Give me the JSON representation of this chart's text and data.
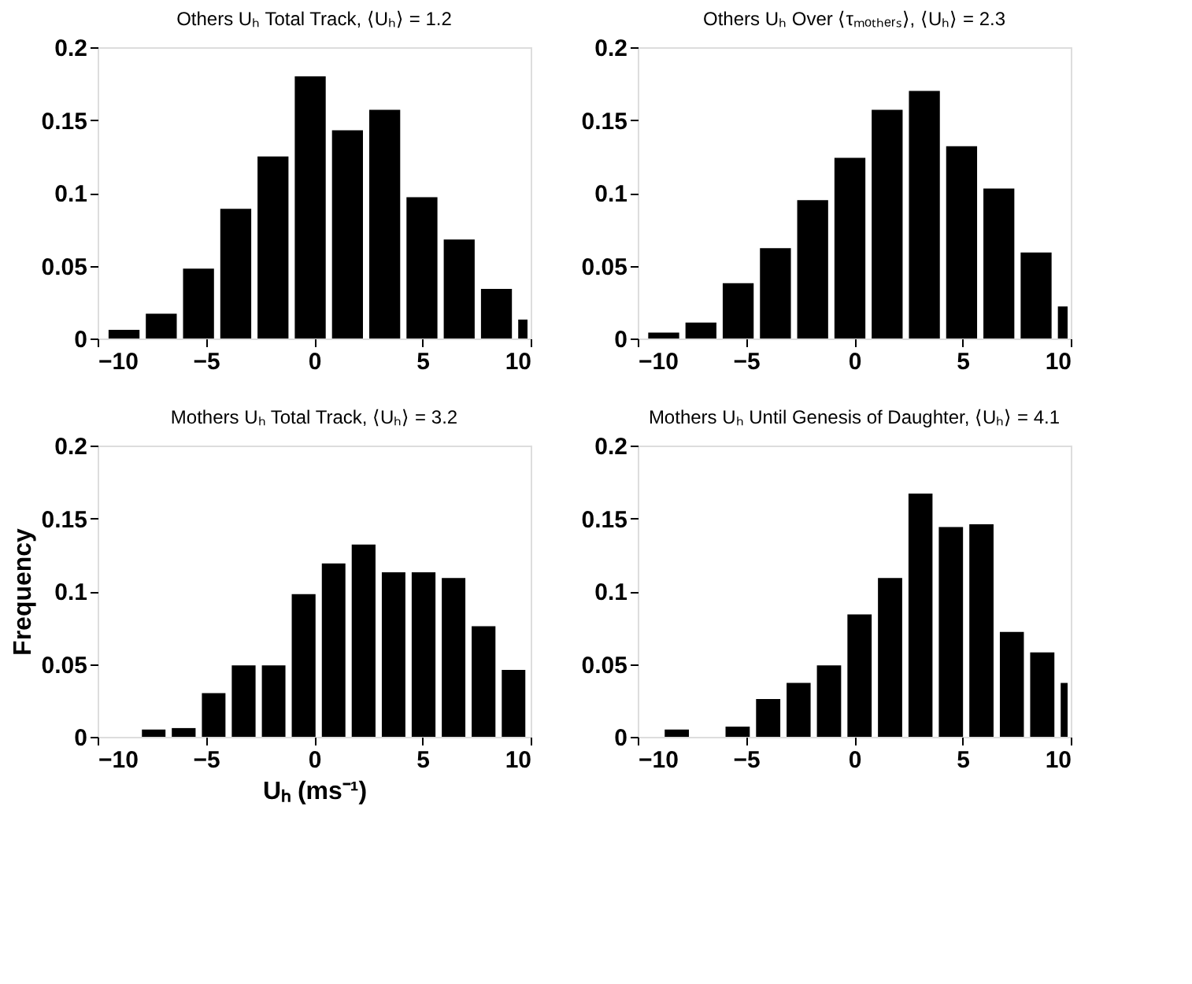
{
  "chart_data": [
    {
      "type": "histogram",
      "title": "Others Uₕ Total Track, ⟨Uₕ⟩ = 1.2",
      "color": "#000000",
      "bins": [
        -9.64,
        -7.92,
        -6.2,
        -4.48,
        -2.76,
        -1.04,
        0.68,
        2.4,
        4.12,
        5.84,
        7.56,
        9.28,
        10
      ],
      "values": [
        0.006,
        0.017,
        0.048,
        0.089,
        0.125,
        0.18,
        0.143,
        0.157,
        0.097,
        0.068,
        0.034,
        0.013
      ],
      "xlim": [
        -10,
        10
      ],
      "ylim": [
        0,
        0.2
      ],
      "xticks": [
        -10,
        -5,
        0,
        5,
        10
      ],
      "yticks": [
        0,
        0.05,
        0.1,
        0.15,
        0.2
      ],
      "grid": false
    },
    {
      "type": "histogram",
      "title": "Others Uₕ Over ⟨τₘₒₜₕₑᵣₛ⟩, ⟨Uₕ⟩ = 2.3",
      "color": "#000000",
      "bins": [
        -9.66,
        -7.94,
        -6.22,
        -4.5,
        -2.78,
        -1.06,
        0.66,
        2.38,
        4.1,
        5.82,
        7.54,
        9.26,
        10
      ],
      "values": [
        0.004,
        0.011,
        0.038,
        0.062,
        0.095,
        0.124,
        0.157,
        0.17,
        0.132,
        0.103,
        0.059,
        0.022
      ],
      "xlim": [
        -10,
        10
      ],
      "ylim": [
        0,
        0.2
      ],
      "xticks": [
        -10,
        -5,
        0,
        5,
        10
      ],
      "yticks": [
        0,
        0.05,
        0.1,
        0.15,
        0.2
      ],
      "grid": false
    },
    {
      "type": "histogram",
      "title": "Mothers Uₕ Total Track, ⟨Uₕ⟩ = 3.2",
      "xlabel": "Uₕ (ms⁻¹)",
      "ylabel": "Frequency",
      "color": "#000000",
      "bins": [
        -9.49,
        -8.1,
        -6.72,
        -5.33,
        -3.95,
        -2.56,
        -1.18,
        0.21,
        1.59,
        2.98,
        4.36,
        5.75,
        7.13,
        8.52,
        9.9
      ],
      "values": [
        0,
        0.005,
        0.006,
        0.03,
        0.049,
        0.049,
        0.098,
        0.119,
        0.132,
        0.113,
        0.113,
        0.109,
        0.076,
        0.046
      ],
      "xlim": [
        -10,
        10
      ],
      "ylim": [
        0,
        0.2
      ],
      "xticks": [
        -10,
        -5,
        0,
        5,
        10
      ],
      "yticks": [
        0,
        0.05,
        0.1,
        0.15,
        0.2
      ],
      "grid": false
    },
    {
      "type": "histogram",
      "title": "Mothers Uₕ Until Genesis of Daughter, ⟨Uₕ⟩ = 4.1",
      "color": "#000000",
      "bins": [
        -8.9,
        -7.49,
        -6.09,
        -4.68,
        -3.27,
        -1.87,
        -0.46,
        0.95,
        2.36,
        3.76,
        5.17,
        6.58,
        7.98,
        9.39,
        10
      ],
      "values": [
        0.005,
        0,
        0.007,
        0.026,
        0.037,
        0.049,
        0.084,
        0.109,
        0.167,
        0.144,
        0.146,
        0.072,
        0.058,
        0.037
      ],
      "xlim": [
        -10,
        10
      ],
      "ylim": [
        0,
        0.2
      ],
      "xticks": [
        -10,
        -5,
        0,
        5,
        10
      ],
      "yticks": [
        0,
        0.05,
        0.1,
        0.15,
        0.2
      ],
      "grid": false
    }
  ]
}
